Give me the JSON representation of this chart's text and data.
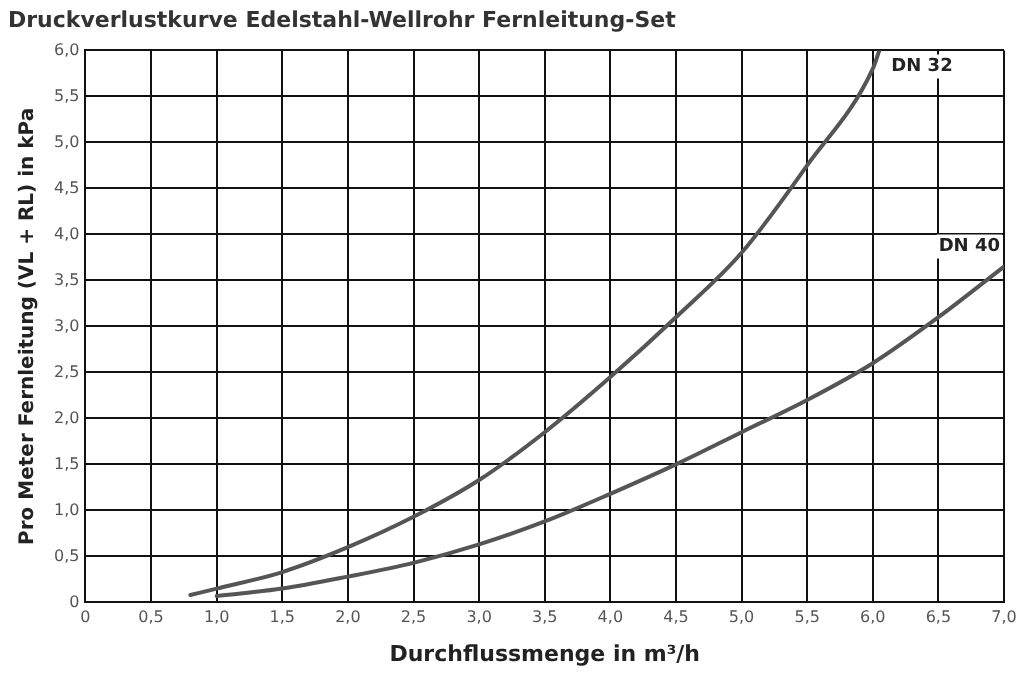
{
  "chart_data": {
    "type": "line",
    "title": "Druckverlustkurve Edelstahl-Wellrohr Fernleitung-Set",
    "xlabel": "Durchflussmenge in m³/h",
    "ylabel": "Pro Meter Fernleitung (VL + RL) in kPa",
    "xlim": [
      0,
      7
    ],
    "ylim": [
      0,
      6
    ],
    "xticks": [
      0,
      {
        "value": 0.5,
        "label": "0,5"
      },
      {
        "value": 1,
        "label": "1,0"
      },
      {
        "value": 1.5,
        "label": "1,5"
      },
      {
        "value": 2,
        "label": "2,0"
      },
      {
        "value": 2.5,
        "label": "2,5"
      },
      {
        "value": 3,
        "label": "3,0"
      },
      {
        "value": 3.5,
        "label": "3,5"
      },
      {
        "value": 4,
        "label": "4,0"
      },
      {
        "value": 4.5,
        "label": "4,5"
      },
      {
        "value": 5,
        "label": "5,0"
      },
      {
        "value": 5.5,
        "label": "5,5"
      },
      {
        "value": 6,
        "label": "6,0"
      },
      {
        "value": 6.5,
        "label": "6,5"
      },
      {
        "value": 7,
        "label": "7,0"
      }
    ],
    "yticks": [
      0,
      {
        "value": 0.5,
        "label": "0,5"
      },
      {
        "value": 1,
        "label": "1,0"
      },
      {
        "value": 1.5,
        "label": "1,5"
      },
      {
        "value": 2,
        "label": "2,0"
      },
      {
        "value": 2.5,
        "label": "2,5"
      },
      {
        "value": 3,
        "label": "3,0"
      },
      {
        "value": 3.5,
        "label": "3,5"
      },
      {
        "value": 4,
        "label": "4,0"
      },
      {
        "value": 4.5,
        "label": "4,5"
      },
      {
        "value": 5,
        "label": "5,0"
      },
      {
        "value": 5.5,
        "label": "5,5"
      },
      {
        "value": 6,
        "label": "6,0"
      }
    ],
    "grid": true,
    "legend": false,
    "marker": "none",
    "line_style": "solid",
    "series": [
      {
        "name": "DN 32",
        "color": "#555555",
        "x": [
          0.8,
          1.0,
          1.5,
          2.0,
          2.5,
          3.0,
          3.5,
          4.0,
          4.5,
          5.0,
          5.5,
          6.0,
          6.05
        ],
        "values": [
          0.08,
          0.15,
          0.33,
          0.6,
          0.93,
          1.33,
          1.85,
          2.45,
          3.1,
          3.8,
          4.75,
          5.8,
          6.0
        ]
      },
      {
        "name": "DN 40",
        "color": "#555555",
        "x": [
          1.0,
          1.5,
          2.0,
          2.5,
          3.0,
          3.5,
          4.0,
          4.5,
          5.0,
          5.5,
          6.0,
          6.5,
          7.0
        ],
        "values": [
          0.07,
          0.15,
          0.28,
          0.43,
          0.63,
          0.88,
          1.18,
          1.5,
          1.85,
          2.2,
          2.6,
          3.1,
          3.65
        ]
      }
    ]
  }
}
